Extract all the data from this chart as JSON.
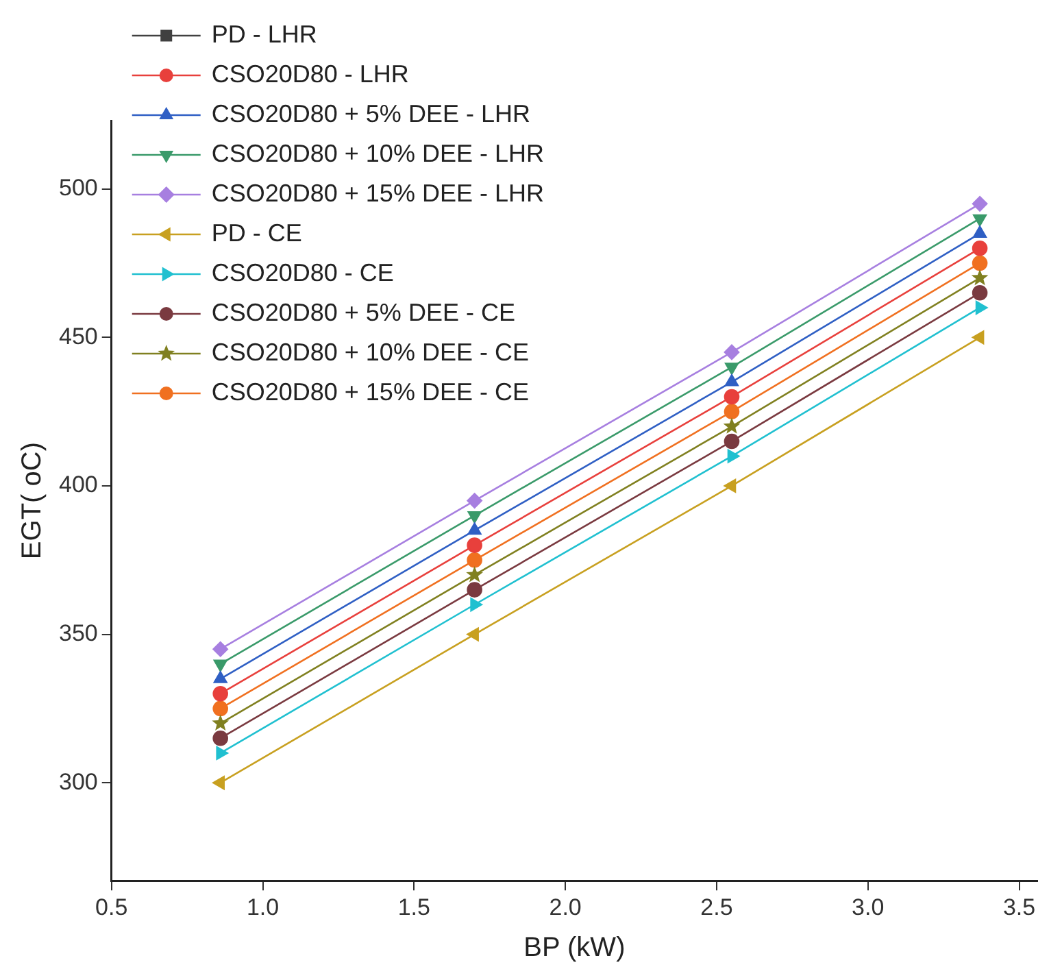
{
  "chart_data": {
    "type": "line",
    "xlabel": "BP (kW)",
    "ylabel": "EGT( oC)",
    "x": [
      0.86,
      1.7,
      2.55,
      3.37
    ],
    "xlim": [
      0.5,
      3.56
    ],
    "xticks": [
      {
        "value": 0.5,
        "label": "0.5"
      },
      {
        "value": 1,
        "label": "1.0"
      },
      {
        "value": 1.5,
        "label": "1.5"
      },
      {
        "value": 2,
        "label": "2.0"
      },
      {
        "value": 2.5,
        "label": "2.5"
      },
      {
        "value": 3,
        "label": "3.0"
      },
      {
        "value": 3.5,
        "label": "3.5"
      }
    ],
    "ylim": [
      267,
      523
    ],
    "yticks": [
      300,
      350,
      400,
      450,
      500
    ],
    "grid": false,
    "legend": "top left",
    "line_style": "solid",
    "series": [
      {
        "name": "PD - LHR",
        "color": "#404040",
        "marker": "square",
        "values": [
          null,
          null,
          null,
          null
        ]
      },
      {
        "name": "CSO20D80 - LHR",
        "color": "#e8403c",
        "marker": "circle",
        "values": [
          330,
          380,
          430,
          480
        ]
      },
      {
        "name": "CSO20D80 + 5% DEE - LHR",
        "color": "#2f5fc4",
        "marker": "triangle",
        "values": [
          335,
          385,
          435,
          485
        ]
      },
      {
        "name": "CSO20D80 + 10% DEE - LHR",
        "color": "#3a9a6a",
        "marker": "triangle-down",
        "values": [
          340,
          390,
          440,
          490
        ]
      },
      {
        "name": "CSO20D80 + 15% DEE - LHR",
        "color": "#a77fe0",
        "marker": "diamond",
        "values": [
          345,
          395,
          445,
          495
        ]
      },
      {
        "name": "PD - CE",
        "color": "#c8a020",
        "marker": "triangle-left",
        "values": [
          300,
          350,
          400,
          450
        ]
      },
      {
        "name": "CSO20D80 - CE",
        "color": "#20c0d0",
        "marker": "triangle-right",
        "values": [
          310,
          360,
          410,
          460
        ]
      },
      {
        "name": "CSO20D80 + 5% DEE - CE",
        "color": "#7a3a40",
        "marker": "circle",
        "values": [
          315,
          365,
          415,
          465
        ]
      },
      {
        "name": "CSO20D80 + 10% DEE - CE",
        "color": "#808020",
        "marker": "star",
        "values": [
          320,
          370,
          420,
          470
        ]
      },
      {
        "name": "CSO20D80 + 15% DEE - CE",
        "color": "#f07020",
        "marker": "circle",
        "values": [
          325,
          375,
          425,
          475
        ]
      }
    ]
  }
}
